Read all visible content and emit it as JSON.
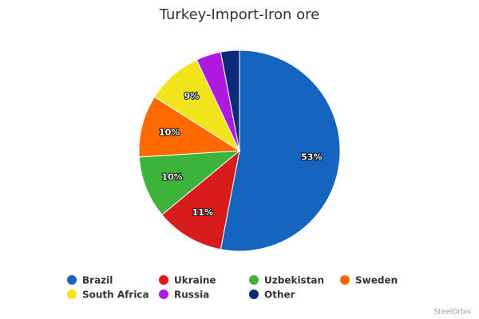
{
  "chart_data": {
    "type": "pie",
    "title": "Turkey-Import-Iron ore",
    "categories": [
      "Brazil",
      "Ukraine",
      "Uzbekistan",
      "Sweden",
      "South Africa",
      "Russia",
      "Other"
    ],
    "values": [
      53,
      11,
      10,
      10,
      9,
      4,
      3
    ],
    "value_labels": [
      "53%",
      "11%",
      "10%",
      "10%",
      "9%",
      null,
      null
    ],
    "colors": [
      "#1565c0",
      "#d81b1b",
      "#3cb43c",
      "#ff6a00",
      "#f2e41a",
      "#b019e0",
      "#0d2a7a"
    ],
    "credits": "SteelOrbis"
  }
}
